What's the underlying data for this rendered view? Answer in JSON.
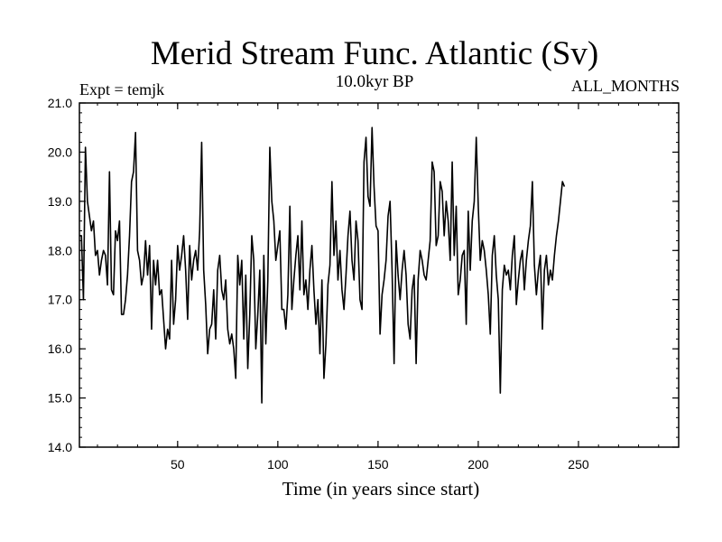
{
  "chart_data": {
    "type": "line",
    "title": "Merid Stream Func. Atlantic (Sv)",
    "subtitle": "10.0kyr BP",
    "annotation_left": "Expt = temjk",
    "annotation_right": "ALL_MONTHS",
    "xlabel": "Time (in years since start)",
    "ylabel": "",
    "xlim": [
      1,
      300
    ],
    "ylim": [
      14.0,
      21.0
    ],
    "x_ticks": [
      50,
      100,
      150,
      200,
      250
    ],
    "y_ticks": [
      "14.0",
      "15.0",
      "16.0",
      "17.0",
      "18.0",
      "19.0",
      "20.0",
      "21.0"
    ],
    "series": [
      {
        "name": "Merid Stream Func. Atlantic",
        "x_start": 1,
        "x_step": 1,
        "values": [
          18.3,
          18.3,
          17.0,
          20.1,
          19.0,
          18.7,
          18.4,
          18.6,
          17.9,
          18.0,
          17.5,
          17.8,
          18.0,
          17.9,
          17.3,
          19.6,
          17.2,
          17.1,
          18.4,
          18.2,
          18.6,
          16.7,
          16.7,
          17.0,
          17.5,
          18.3,
          19.4,
          19.6,
          20.4,
          18.0,
          17.8,
          17.3,
          17.5,
          18.2,
          17.5,
          18.1,
          16.4,
          17.8,
          17.3,
          17.8,
          17.1,
          17.2,
          16.6,
          16.0,
          16.4,
          16.2,
          17.8,
          16.5,
          17.0,
          18.1,
          17.6,
          17.9,
          18.3,
          17.6,
          16.6,
          18.1,
          17.4,
          17.8,
          18.0,
          17.6,
          18.4,
          20.2,
          17.6,
          16.9,
          15.9,
          16.4,
          16.5,
          17.2,
          16.2,
          17.6,
          17.9,
          17.2,
          17.0,
          17.4,
          16.4,
          16.1,
          16.3,
          16.0,
          15.4,
          17.9,
          17.3,
          17.8,
          16.2,
          17.5,
          15.6,
          16.7,
          18.3,
          17.8,
          16.0,
          16.7,
          17.6,
          14.9,
          17.9,
          16.1,
          17.4,
          20.1,
          19.0,
          18.6,
          17.8,
          18.1,
          18.4,
          16.8,
          16.8,
          16.4,
          17.1,
          18.9,
          16.8,
          17.4,
          17.9,
          18.3,
          17.2,
          18.6,
          17.1,
          17.4,
          16.8,
          17.6,
          18.1,
          17.2,
          16.5,
          17.0,
          15.9,
          17.4,
          15.4,
          16.1,
          17.3,
          17.7,
          19.4,
          17.9,
          18.6,
          17.4,
          18.0,
          17.2,
          16.8,
          17.5,
          18.3,
          18.8,
          17.8,
          17.4,
          18.6,
          18.2,
          17.0,
          16.8,
          19.8,
          20.3,
          19.1,
          18.9,
          20.5,
          19.3,
          18.5,
          18.4,
          16.3,
          17.1,
          17.4,
          17.8,
          18.7,
          19.0,
          17.6,
          15.7,
          18.2,
          17.5,
          17.0,
          17.6,
          18.0,
          17.5,
          16.5,
          16.2,
          17.2,
          17.5,
          15.7,
          17.4,
          18.0,
          17.8,
          17.5,
          17.4,
          17.8,
          18.2,
          19.8,
          19.6,
          18.1,
          18.3,
          19.4,
          19.2,
          18.3,
          19.0,
          18.6,
          17.8,
          19.8,
          17.9,
          18.9,
          17.1,
          17.4,
          17.9,
          18.0,
          16.5,
          18.8,
          17.6,
          18.6,
          19.0,
          20.3,
          18.9,
          17.8,
          18.2,
          18.0,
          17.6,
          17.1,
          16.3,
          17.9,
          18.3,
          17.5,
          17.0,
          15.1,
          17.2,
          17.7,
          17.5,
          17.6,
          17.2,
          17.9,
          18.3,
          16.9,
          17.4,
          17.8,
          18.0,
          17.2,
          17.8,
          18.2,
          18.5,
          19.4,
          17.7,
          17.1,
          17.6,
          17.9,
          16.4,
          17.6,
          17.9,
          17.3,
          17.6,
          17.4,
          17.9,
          18.3,
          18.6,
          19.0,
          19.4,
          19.3
        ]
      }
    ]
  }
}
